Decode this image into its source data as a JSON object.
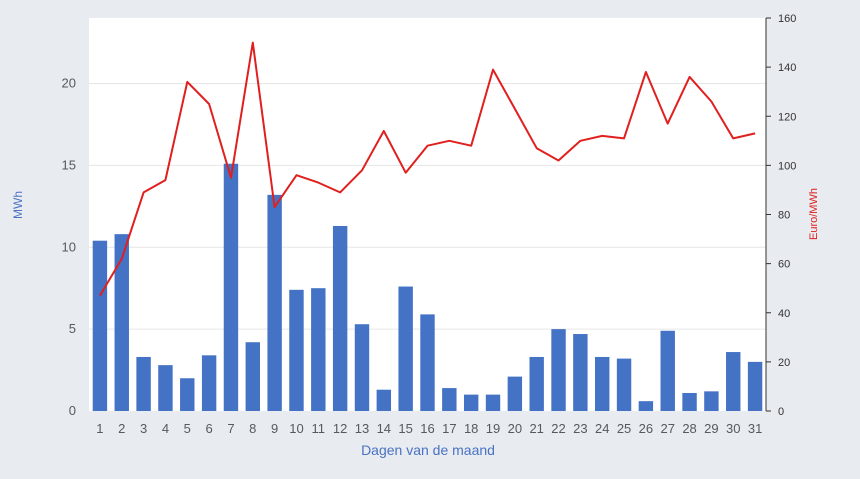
{
  "chart_data": {
    "type": "bar",
    "xlabel": "Dagen van de maand",
    "ylabel": "MWh",
    "y2label": "Euro/MWh",
    "ylim": [
      0,
      24
    ],
    "y2lim": [
      0,
      160
    ],
    "yticks": [
      0,
      5,
      10,
      15,
      20
    ],
    "y2ticks": [
      0,
      20,
      40,
      60,
      80,
      100,
      120,
      140,
      160
    ],
    "grid": true,
    "categories": [
      "1",
      "2",
      "3",
      "4",
      "5",
      "6",
      "7",
      "8",
      "9",
      "10",
      "11",
      "12",
      "13",
      "14",
      "15",
      "16",
      "17",
      "18",
      "19",
      "20",
      "21",
      "22",
      "23",
      "24",
      "25",
      "26",
      "27",
      "28",
      "29",
      "30",
      "31"
    ],
    "series": [
      {
        "type": "bar",
        "axis": "left",
        "color": "#4472c4",
        "values": [
          10.4,
          10.8,
          3.3,
          2.8,
          2.0,
          3.4,
          15.1,
          4.2,
          13.2,
          7.4,
          7.5,
          11.3,
          5.3,
          1.3,
          7.6,
          5.9,
          1.4,
          1.0,
          1.0,
          2.1,
          3.3,
          5.0,
          4.7,
          3.3,
          3.2,
          0.6,
          4.9,
          1.1,
          1.2,
          3.6,
          3.0
        ]
      },
      {
        "type": "line",
        "axis": "right",
        "color": "#e0201e",
        "values": [
          47,
          62,
          89,
          94,
          134,
          125,
          95,
          150,
          83,
          96,
          93,
          89,
          98,
          114,
          97,
          108,
          110,
          108,
          139,
          123,
          107,
          102,
          110,
          112,
          111,
          138,
          117,
          136,
          126,
          111,
          113
        ]
      }
    ]
  }
}
